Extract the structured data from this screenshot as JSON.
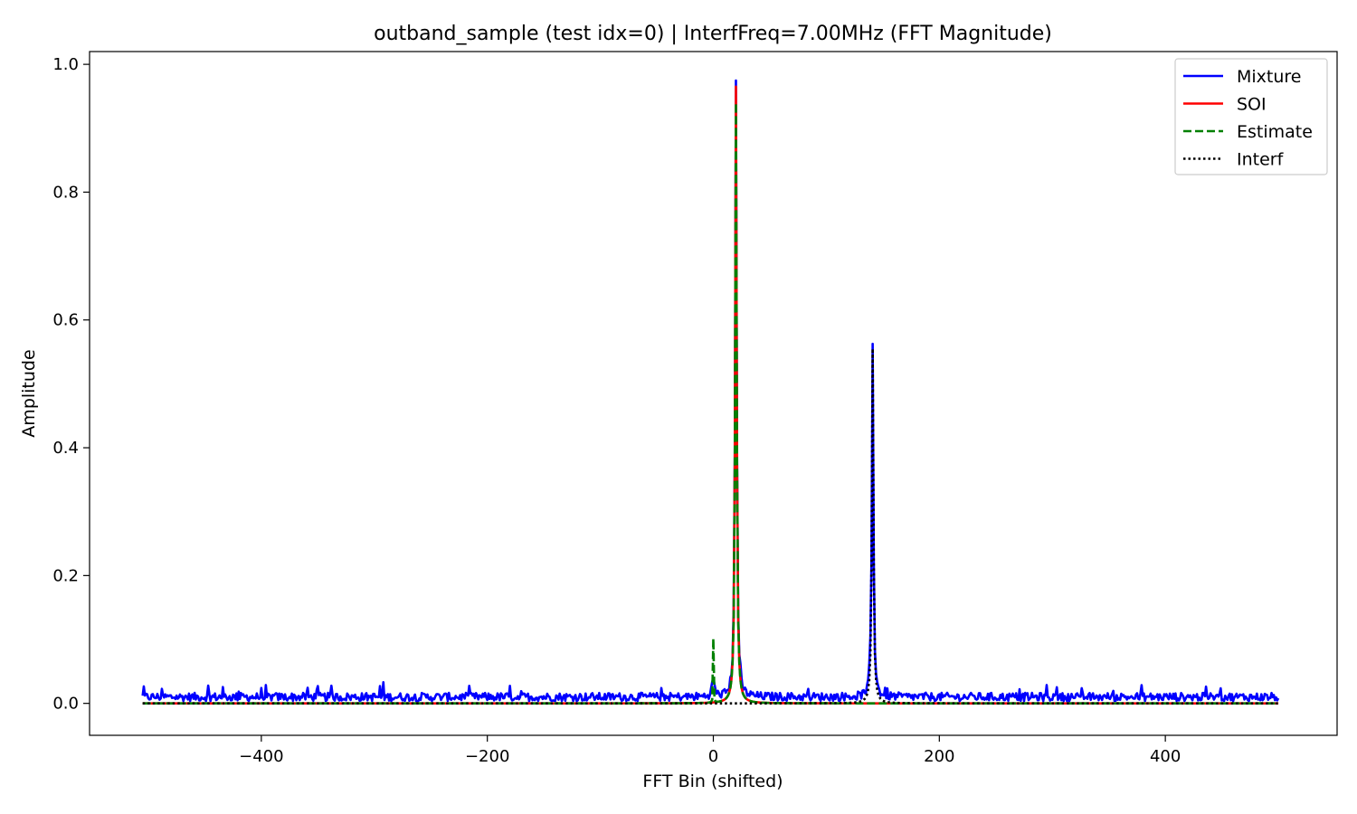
{
  "chart_data": {
    "type": "line",
    "title": "outband_sample (test idx=0) | InterfFreq=7.00MHz (FFT Magnitude)",
    "xlabel": "FFT Bin (shifted)",
    "ylabel": "Amplitude",
    "xlim": [
      -552,
      552
    ],
    "ylim": [
      -0.05,
      1.02
    ],
    "xticks": [
      -400,
      -200,
      0,
      200,
      400
    ],
    "xtick_labels": [
      "−400",
      "−200",
      "0",
      "200",
      "400"
    ],
    "yticks": [
      0.0,
      0.2,
      0.4,
      0.6,
      0.8,
      1.0
    ],
    "ytick_labels": [
      "0.0",
      "0.2",
      "0.4",
      "0.6",
      "0.8",
      "1.0"
    ],
    "grid": false,
    "legend_position": "top-right",
    "x_range": [
      -505,
      500
    ],
    "series": [
      {
        "name": "Mixture",
        "color": "#0000ff",
        "style": "solid",
        "peaks": [
          {
            "x": 20,
            "y": 0.97
          },
          {
            "x": 141,
            "y": 0.555
          },
          {
            "x": 0,
            "y": 0.03
          }
        ],
        "noise_floor": 0.01
      },
      {
        "name": "SOI",
        "color": "#ff0000",
        "style": "solid",
        "peaks": [
          {
            "x": 20,
            "y": 0.965
          }
        ],
        "noise_floor": 0.0
      },
      {
        "name": "Estimate",
        "color": "#008000",
        "style": "dashed",
        "peaks": [
          {
            "x": 20,
            "y": 0.94
          },
          {
            "x": 0,
            "y": 0.1
          }
        ],
        "noise_floor": 0.0
      },
      {
        "name": "Interf",
        "color": "#000000",
        "style": "dotted",
        "peaks": [
          {
            "x": 141,
            "y": 0.555
          }
        ],
        "noise_floor": 0.0
      }
    ]
  }
}
